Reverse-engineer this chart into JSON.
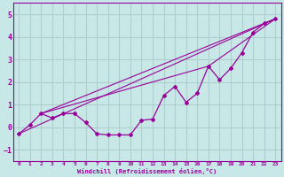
{
  "x_data": [
    0,
    1,
    2,
    3,
    4,
    5,
    6,
    7,
    8,
    9,
    10,
    11,
    12,
    13,
    14,
    15,
    16,
    17,
    18,
    19,
    20,
    21,
    22,
    23
  ],
  "line1_y": [
    -0.3,
    0.1,
    0.6,
    0.4,
    0.6,
    0.6,
    0.2,
    -0.3,
    -0.35,
    -0.35,
    -0.35,
    0.3,
    0.35,
    1.4,
    1.8,
    1.1,
    1.5,
    2.7,
    2.1,
    2.6,
    3.3,
    4.2,
    4.6,
    4.8
  ],
  "xlim": [
    -0.5,
    23.5
  ],
  "ylim": [
    -1.5,
    5.5
  ],
  "yticks": [
    -1,
    0,
    1,
    2,
    3,
    4,
    5
  ],
  "xticks": [
    0,
    1,
    2,
    3,
    4,
    5,
    6,
    7,
    8,
    9,
    10,
    11,
    12,
    13,
    14,
    15,
    16,
    17,
    18,
    19,
    20,
    21,
    22,
    23
  ],
  "xlabel": "Windchill (Refroidissement éolien,°C)",
  "color": "#990099",
  "bg_color": "#c8e8e8",
  "grid_color": "#b0cece",
  "straight_lines": [
    {
      "x": [
        0,
        23
      ],
      "y": [
        -0.3,
        4.8
      ]
    },
    {
      "x": [
        2,
        23
      ],
      "y": [
        0.6,
        4.8
      ]
    },
    {
      "x": [
        2,
        17
      ],
      "y": [
        0.6,
        2.7
      ]
    },
    {
      "x": [
        17,
        23
      ],
      "y": [
        2.7,
        4.8
      ]
    }
  ]
}
